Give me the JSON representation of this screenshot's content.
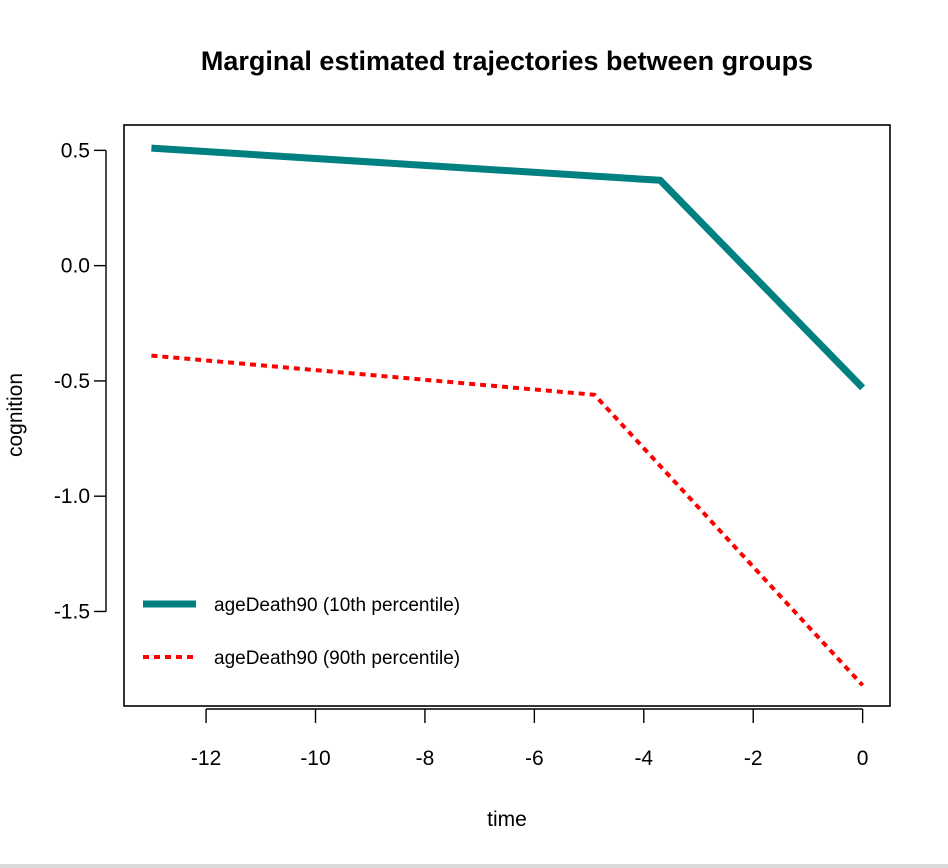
{
  "chart_data": {
    "type": "line",
    "title": "Marginal estimated trajectories between groups",
    "xlabel": "time",
    "ylabel": "cognition",
    "xlim": [
      -13.5,
      0.5
    ],
    "ylim": [
      -1.91,
      0.61
    ],
    "xticks": [
      -12,
      -10,
      -8,
      -6,
      -4,
      -2,
      0
    ],
    "xtick_labels": [
      "-12",
      "-10",
      "-8",
      "-6",
      "-4",
      "-2",
      "0"
    ],
    "yticks": [
      0.5,
      0.0,
      -0.5,
      -1.0,
      -1.5
    ],
    "ytick_labels": [
      "0.5",
      "0.0",
      "-0.5",
      "-1.0",
      "-1.5"
    ],
    "grid": false,
    "legend_position": "bottom-left",
    "series": [
      {
        "name": "ageDeath90 (10th percentile)",
        "color": "#008080",
        "style": "solid",
        "x": [
          -13,
          -3.7,
          0
        ],
        "y": [
          0.51,
          0.37,
          -0.53
        ]
      },
      {
        "name": "ageDeath90 (90th percentile)",
        "color": "#ff0000",
        "style": "dotted",
        "x": [
          -13,
          -4.9,
          0
        ],
        "y": [
          -0.39,
          -0.56,
          -1.82
        ]
      }
    ]
  }
}
